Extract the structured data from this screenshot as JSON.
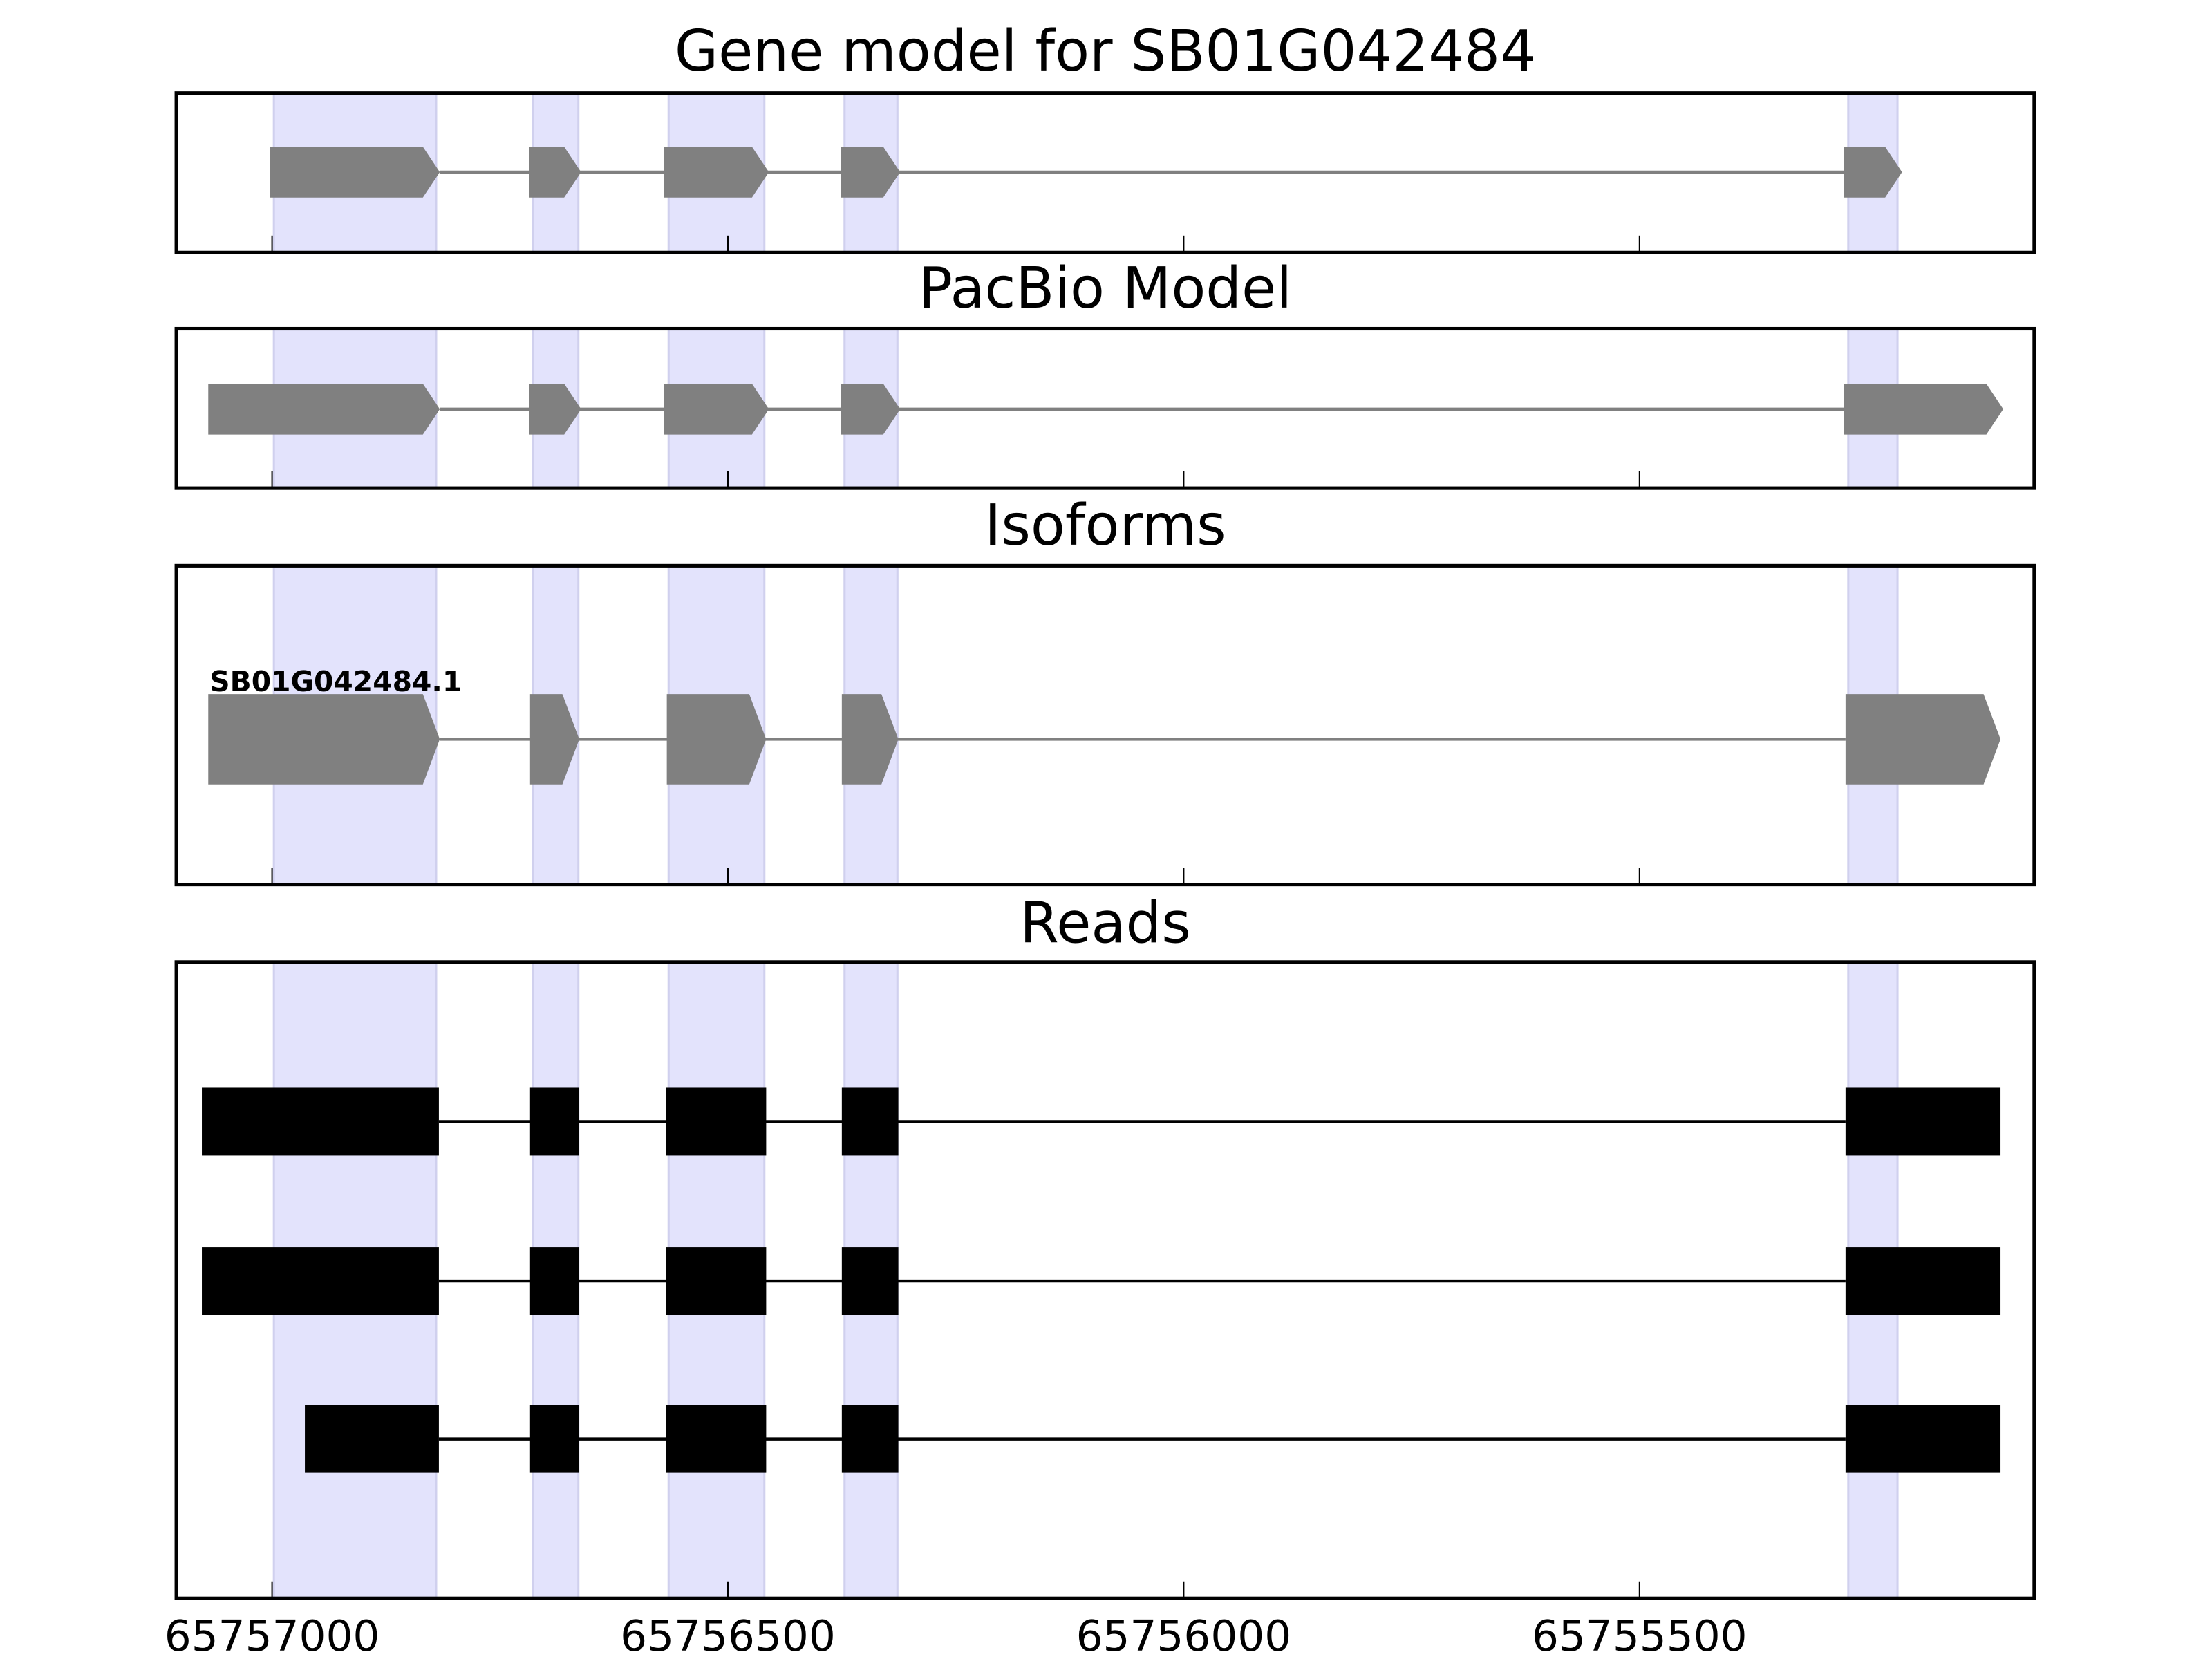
{
  "colors": {
    "exon_model": "#808080",
    "read": "#000000",
    "highlight": "#e3e3fc",
    "highlight_edge": "#d0d0ee"
  },
  "chart_data": {
    "type": "gene-track",
    "xlim": [
      65757105,
      65755067
    ],
    "x_reversed": true,
    "x_ticks": [
      65757000,
      65756500,
      65756000,
      65755500
    ],
    "x_tick_labels": [
      "65757000",
      "65756500",
      "65756000",
      "65755500"
    ],
    "highlight_regions": [
      [
        65756998,
        65756820
      ],
      [
        65756714,
        65756664
      ],
      [
        65756565,
        65756460
      ],
      [
        65756372,
        65756314
      ],
      [
        65755271,
        65755217
      ]
    ],
    "panels": [
      {
        "title": "Gene model for SB01G042484",
        "kind": "model",
        "tracks": [
          {
            "label": "",
            "exons": [
              [
                65757002,
                65756816
              ],
              [
                65756718,
                65756661
              ],
              [
                65756570,
                65756455
              ],
              [
                65756376,
                65756311
              ],
              [
                65755276,
                65755212
              ]
            ]
          }
        ]
      },
      {
        "title": "PacBio Model",
        "kind": "model",
        "tracks": [
          {
            "label": "",
            "exons": [
              [
                65757070,
                65756816
              ],
              [
                65756718,
                65756661
              ],
              [
                65756570,
                65756455
              ],
              [
                65756376,
                65756311
              ],
              [
                65755276,
                65755101
              ]
            ]
          }
        ]
      },
      {
        "title": "Isoforms",
        "kind": "isoform",
        "tracks": [
          {
            "label": "SB01G042484.1",
            "exons": [
              [
                65757070,
                65756816
              ],
              [
                65756717,
                65756663
              ],
              [
                65756567,
                65756458
              ],
              [
                65756375,
                65756313
              ],
              [
                65755274,
                65755104
              ]
            ]
          }
        ]
      },
      {
        "title": "Reads",
        "kind": "read",
        "tracks": [
          {
            "label": "",
            "exons": [
              [
                65757077,
                65756817
              ],
              [
                65756717,
                65756663
              ],
              [
                65756568,
                65756458
              ],
              [
                65756375,
                65756313
              ],
              [
                65755274,
                65755104
              ]
            ]
          },
          {
            "label": "",
            "exons": [
              [
                65757077,
                65756817
              ],
              [
                65756717,
                65756663
              ],
              [
                65756568,
                65756458
              ],
              [
                65756375,
                65756313
              ],
              [
                65755274,
                65755104
              ]
            ]
          },
          {
            "label": "",
            "exons": [
              [
                65756964,
                65756817
              ],
              [
                65756717,
                65756663
              ],
              [
                65756568,
                65756458
              ],
              [
                65756375,
                65756313
              ],
              [
                65755274,
                65755104
              ]
            ]
          }
        ]
      }
    ]
  }
}
